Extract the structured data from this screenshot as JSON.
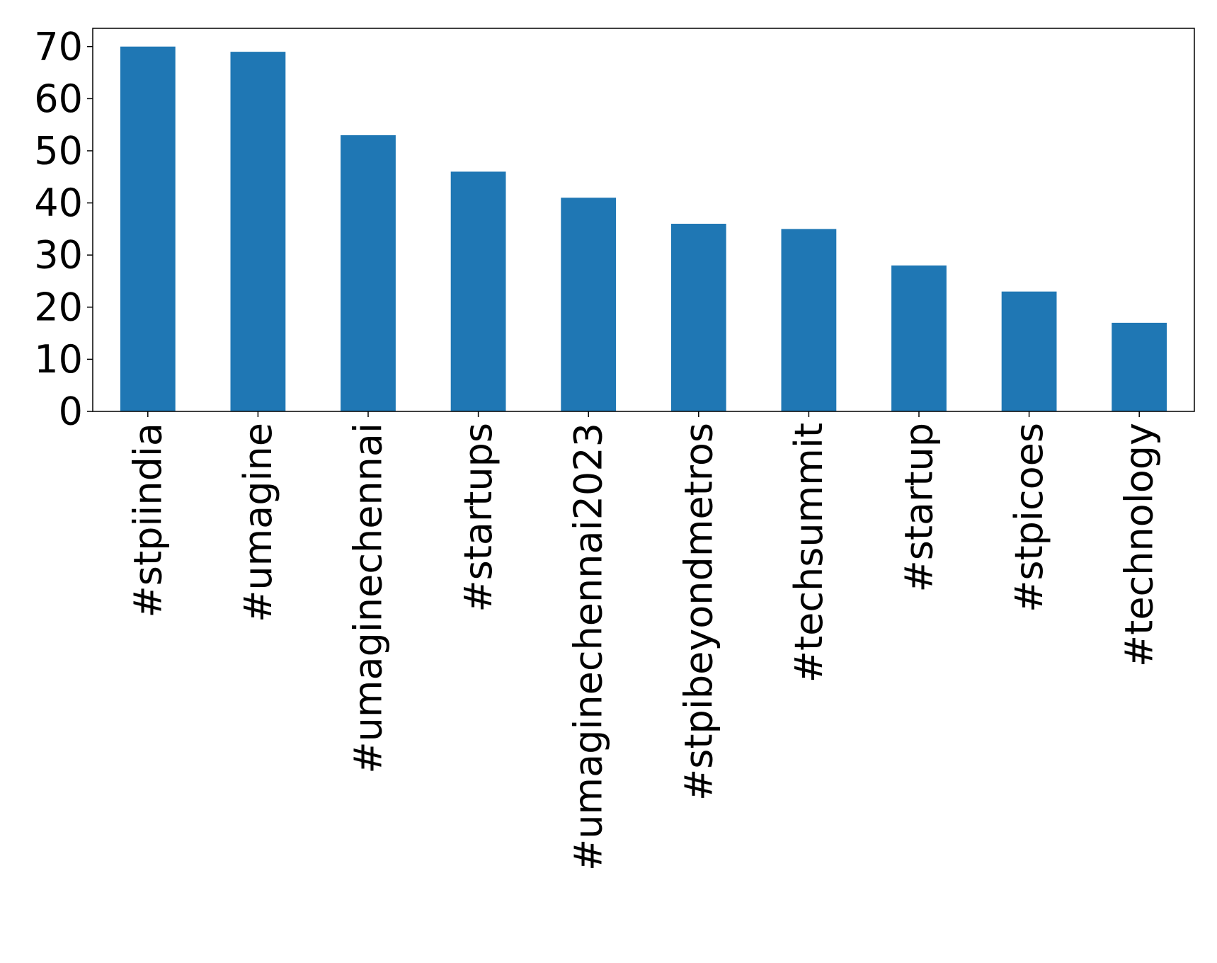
{
  "chart_data": {
    "type": "bar",
    "title": "",
    "xlabel": "",
    "ylabel": "",
    "categories": [
      "#stpiindia",
      "#umagine",
      "#umaginechennai",
      "#startups",
      "#umaginechennai2023",
      "#stpibeyondmetros",
      "#techsummit",
      "#startup",
      "#stpicoes",
      "#technology"
    ],
    "values": [
      70,
      69,
      53,
      46,
      41,
      36,
      35,
      28,
      23,
      17
    ],
    "ylim": [
      0,
      73.5
    ],
    "yticks": [
      0,
      10,
      20,
      30,
      40,
      50,
      60,
      70
    ],
    "bar_color": "#1f77b4",
    "grid": false,
    "legend": "none"
  }
}
